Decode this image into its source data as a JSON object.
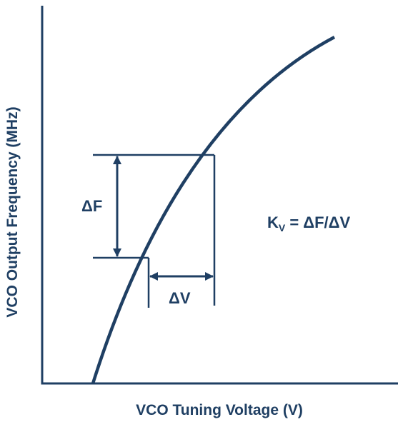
{
  "figure": {
    "color": "#1f3f63",
    "xlabel": "VCO Tuning Voltage (V)",
    "ylabel": "VCO Output Frequency (MHz)",
    "delta_f_label": "ΔF",
    "delta_v_label": "ΔV",
    "formula": {
      "k": "K",
      "subscript": "V",
      "rhs": " = ΔF/ΔV"
    }
  }
}
